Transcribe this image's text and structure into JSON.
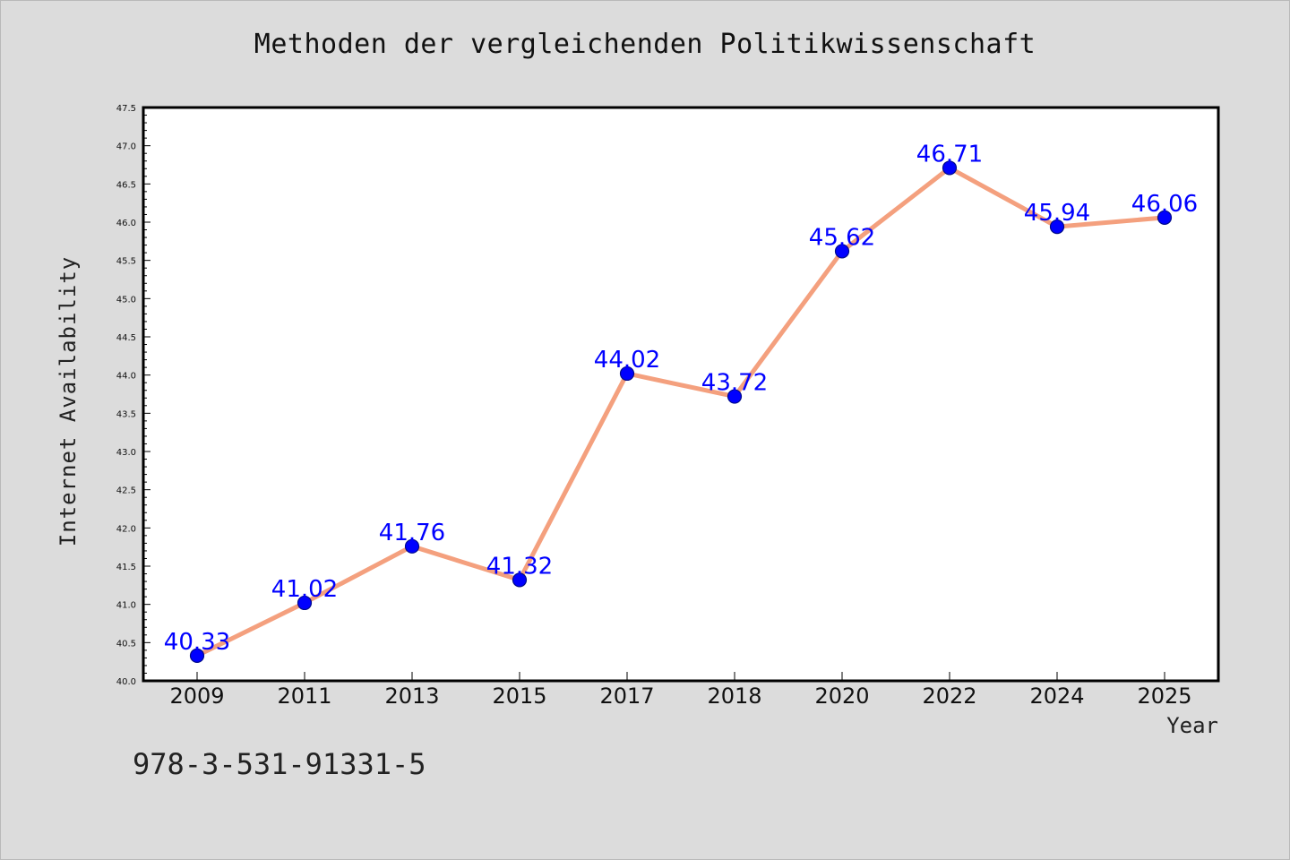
{
  "chart_data": {
    "type": "line",
    "title": "Methoden der vergleichenden Politikwissenschaft",
    "xlabel": "Year",
    "ylabel": "Internet Availability",
    "categories": [
      "2009",
      "2011",
      "2013",
      "2015",
      "2017",
      "2018",
      "2020",
      "2022",
      "2024",
      "2025"
    ],
    "series": [
      {
        "values": [
          40.33,
          41.02,
          41.76,
          41.32,
          44.02,
          43.72,
          45.62,
          46.71,
          45.94,
          46.06
        ],
        "line_color": "#f4a07e",
        "marker_color": "#0000ff"
      }
    ],
    "data_labels": [
      "40.33",
      "41.02",
      "41.76",
      "41.32",
      "44.02",
      "43.72",
      "45.62",
      "46.71",
      "45.94",
      "46.06"
    ],
    "data_label_color": "#0000ff",
    "ylim": [
      40.0,
      47.5
    ],
    "yticks": [
      "40.0",
      "40.5",
      "41.0",
      "41.5",
      "42.0",
      "42.5",
      "43.0",
      "43.5",
      "44.0",
      "44.5",
      "45.0",
      "45.5",
      "46.0",
      "46.5",
      "47.0",
      "47.5"
    ],
    "grid": false,
    "legend": "none",
    "background_color": "#dcdcdc",
    "plot_background_color": "#ffffff"
  },
  "footer": {
    "isbn": "978-3-531-91331-5"
  }
}
